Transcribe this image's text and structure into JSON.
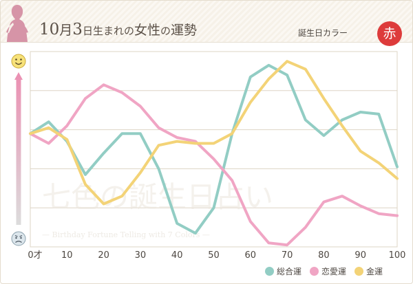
{
  "header": {
    "title_month": "10",
    "title_month_unit": "月",
    "title_day": "3",
    "title_rest_small": "日生まれの",
    "title_women": "女性",
    "title_no": "の",
    "title_luck": "運勢",
    "birthday_color_label": "誕生日カラー",
    "birthday_color_char": "赤",
    "birthday_color_hex": "#dd3b3b"
  },
  "watermark": {
    "main": "七色の誕生日占い",
    "sub": "— Birthday Fortune Telling with 7 Colors —"
  },
  "colors": {
    "overall": "#92cdc4",
    "love": "#f0a5c4",
    "money": "#f3d377",
    "grid": "#ddd4c5",
    "axis_text": "#4c4640"
  },
  "icons": {
    "top": "happy-face-icon",
    "bottom": "sad-face-icon",
    "gauge": "up-arrow-gauge-icon"
  },
  "chart_data": {
    "type": "line",
    "x": [
      0,
      5,
      10,
      15,
      20,
      25,
      30,
      35,
      40,
      45,
      50,
      55,
      60,
      65,
      70,
      75,
      80,
      85,
      90,
      95,
      100
    ],
    "xlim": [
      0,
      100
    ],
    "ylim": [
      0,
      100
    ],
    "x_ticks": [
      0,
      10,
      20,
      30,
      40,
      50,
      60,
      70,
      80,
      90,
      100
    ],
    "x_tick_labels": [
      "0才",
      "10",
      "20",
      "30",
      "40",
      "50",
      "60",
      "70",
      "80",
      "90",
      "100"
    ],
    "y_gridlines": [
      20,
      40,
      60,
      80
    ],
    "grid": true,
    "legend_position": "bottom-right",
    "series": [
      {
        "name": "総合運",
        "color": "#92cdc4",
        "values": [
          58,
          64,
          54,
          37,
          48,
          58,
          58,
          40,
          12,
          7,
          20,
          58,
          87,
          93,
          88,
          65,
          57,
          65,
          69,
          68,
          41
        ]
      },
      {
        "name": "恋愛運",
        "color": "#f0a5c4",
        "values": [
          58,
          53,
          62,
          76,
          83,
          79,
          72,
          61,
          56,
          54,
          45,
          34,
          13,
          2,
          1,
          10,
          23,
          26,
          21,
          17,
          16
        ]
      },
      {
        "name": "金運",
        "color": "#f3d377",
        "values": [
          58,
          61,
          55,
          32,
          22,
          26,
          38,
          52,
          54,
          53,
          53,
          58,
          74,
          86,
          95,
          91,
          76,
          62,
          49,
          43,
          35
        ]
      }
    ]
  }
}
